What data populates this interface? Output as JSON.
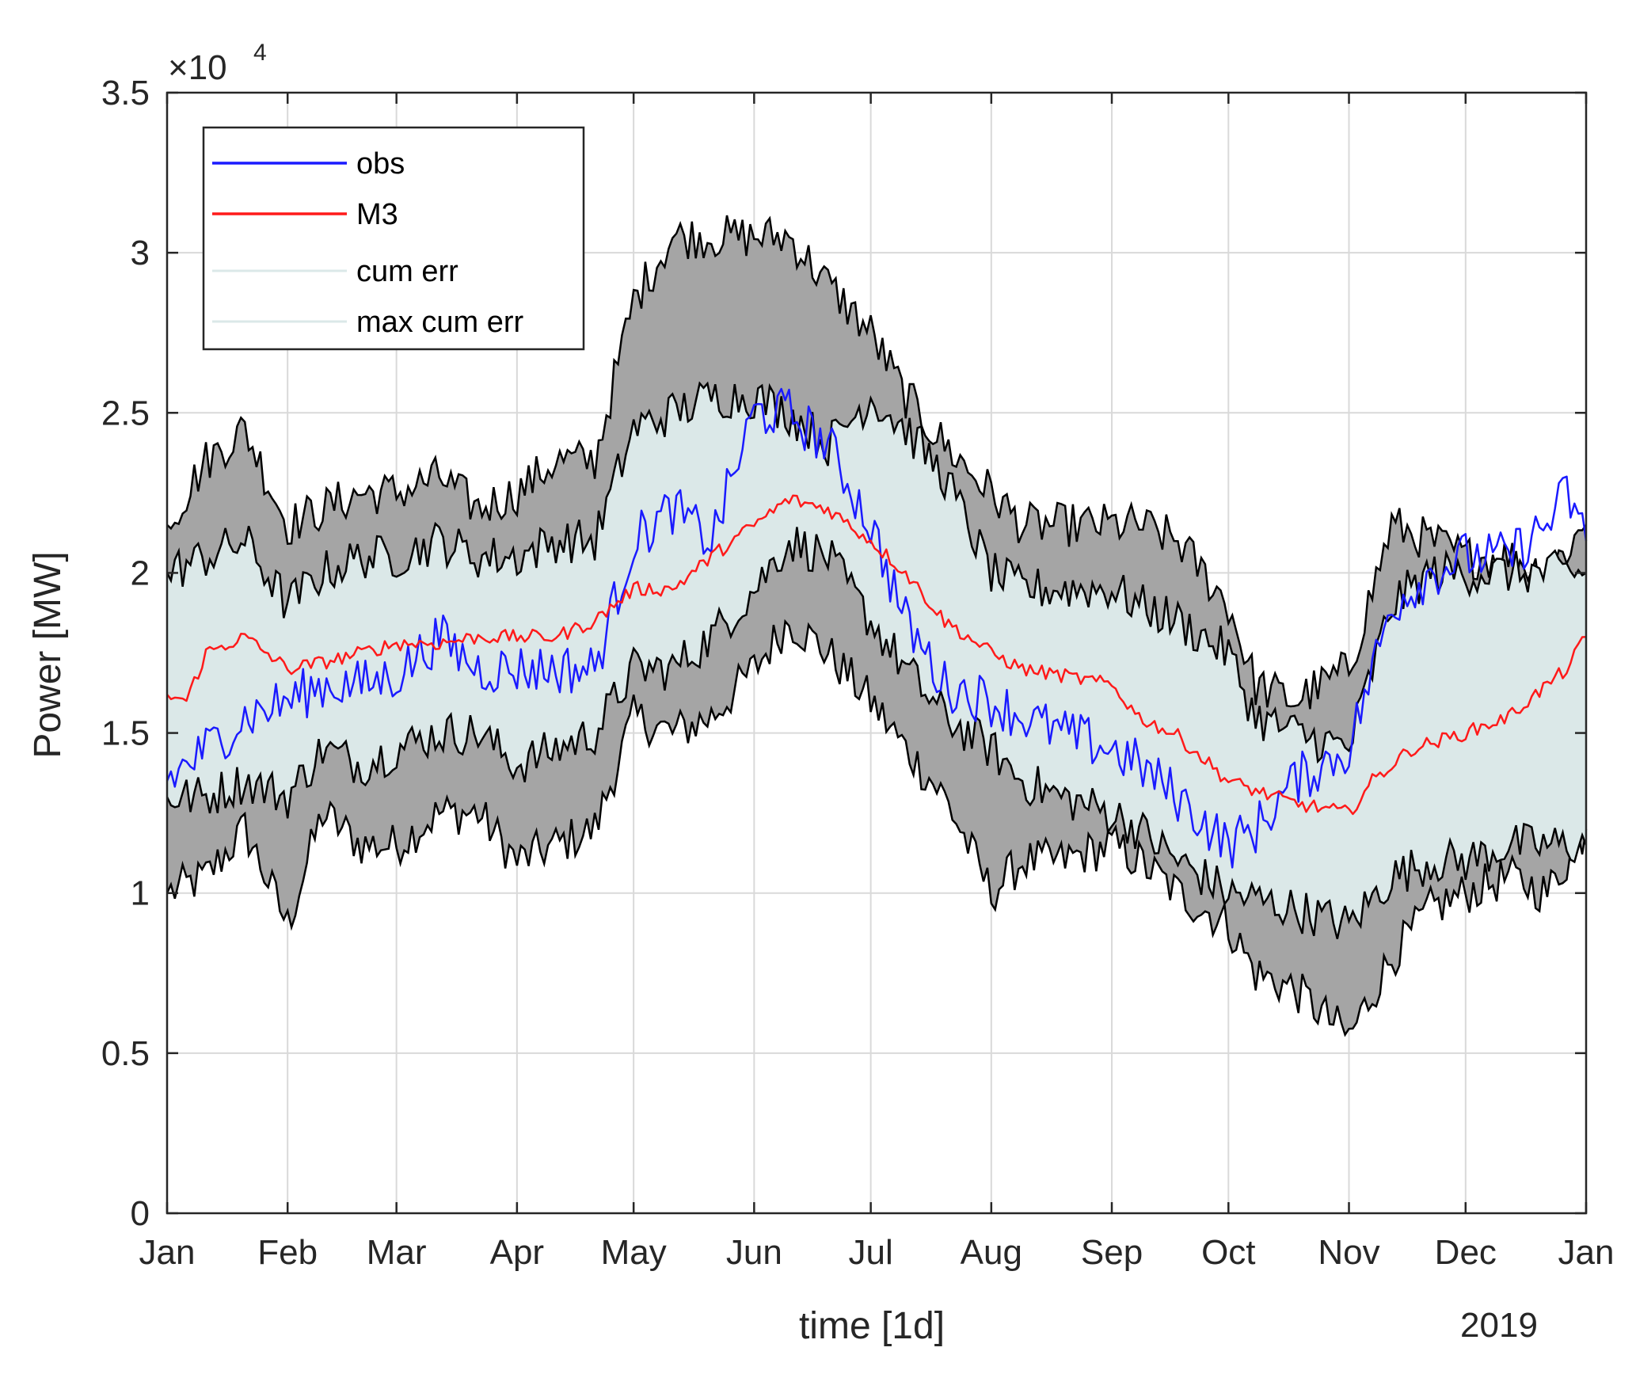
{
  "chart_data": {
    "type": "line",
    "title": "",
    "xlabel": "time [1d]",
    "ylabel": "Power [MW]",
    "y_exponent_label": "×10",
    "y_exponent_power": "4",
    "year_label": "2019",
    "x_domain_days": [
      0,
      365
    ],
    "ylim": [
      0,
      35000
    ],
    "y_ticks": [
      0,
      5000,
      10000,
      15000,
      20000,
      25000,
      30000,
      35000
    ],
    "y_tick_labels": [
      "0",
      "0.5",
      "1",
      "1.5",
      "2",
      "2.5",
      "3",
      "3.5"
    ],
    "x_ticks_day": [
      0,
      31,
      59,
      90,
      120,
      151,
      181,
      212,
      243,
      273,
      304,
      334,
      365
    ],
    "x_tick_labels": [
      "Jan",
      "Feb",
      "Mar",
      "Apr",
      "May",
      "Jun",
      "Jul",
      "Aug",
      "Sep",
      "Oct",
      "Nov",
      "Dec",
      "Jan"
    ],
    "grid": true,
    "legend_position": "top-left",
    "legend": [
      "obs",
      "M3",
      "cum err",
      "max cum err"
    ],
    "colors": {
      "obs": "#1a1aff",
      "M3": "#ff1a1a",
      "cum_err_fill": "#dbe8e8",
      "max_cum_err_fill": "#a5a5a5",
      "band_edge": "#000000",
      "grid": "#d9d9d9",
      "axis": "#262626"
    },
    "series": [
      {
        "name": "obs",
        "x": [
          0,
          10,
          20,
          31,
          40,
          50,
          59,
          70,
          80,
          90,
          100,
          110,
          120,
          130,
          140,
          151,
          160,
          170,
          181,
          190,
          200,
          212,
          220,
          230,
          243,
          250,
          260,
          273,
          280,
          290,
          304,
          315,
          325,
          334,
          345,
          355,
          360,
          365
        ],
        "values": [
          13500,
          14500,
          15500,
          16000,
          16500,
          16500,
          16800,
          18000,
          17000,
          17000,
          17000,
          17000,
          21000,
          22000,
          21000,
          25000,
          25000,
          24000,
          21500,
          18500,
          16500,
          16000,
          15500,
          15000,
          14500,
          14000,
          13000,
          11500,
          12000,
          13500,
          14500,
          19000,
          20000,
          20500,
          20500,
          21500,
          22500,
          21000
        ]
      },
      {
        "name": "M3",
        "x": [
          0,
          5,
          10,
          20,
          31,
          40,
          50,
          59,
          70,
          80,
          90,
          100,
          110,
          120,
          130,
          140,
          151,
          160,
          170,
          181,
          190,
          200,
          212,
          220,
          230,
          243,
          250,
          260,
          273,
          280,
          290,
          304,
          310,
          320,
          334,
          345,
          355,
          360,
          365
        ],
        "values": [
          16200,
          16000,
          17500,
          18000,
          17000,
          17200,
          17500,
          17800,
          17800,
          18000,
          18000,
          18000,
          18500,
          19500,
          19500,
          20500,
          21500,
          22300,
          22000,
          21000,
          20000,
          18500,
          17500,
          17000,
          16800,
          16500,
          15500,
          14900,
          13500,
          13200,
          12800,
          12500,
          13500,
          14500,
          15000,
          15500,
          16500,
          17000,
          18000
        ]
      }
    ],
    "bands": [
      {
        "name": "cum err",
        "x": [
          0,
          10,
          20,
          31,
          40,
          50,
          59,
          70,
          80,
          90,
          100,
          110,
          120,
          130,
          140,
          151,
          160,
          170,
          181,
          190,
          200,
          212,
          220,
          230,
          243,
          250,
          260,
          273,
          280,
          290,
          304,
          315,
          325,
          334,
          345,
          355,
          365
        ],
        "lower": [
          13000,
          13000,
          13500,
          13000,
          14500,
          14000,
          14500,
          15000,
          15000,
          14000,
          14500,
          15000,
          17000,
          17000,
          18000,
          19500,
          21000,
          20500,
          18500,
          17000,
          15500,
          14500,
          13500,
          13000,
          12500,
          12000,
          11000,
          10000,
          9800,
          9500,
          9000,
          10500,
          11000,
          11000,
          11500,
          11500,
          11500
        ],
        "upper": [
          20000,
          20500,
          21000,
          19000,
          20000,
          20500,
          20500,
          21000,
          20500,
          20500,
          21000,
          21000,
          24500,
          25000,
          25500,
          25500,
          25000,
          24000,
          25500,
          24500,
          23000,
          20000,
          19500,
          19500,
          19500,
          19000,
          18500,
          17500,
          15500,
          15000,
          14500,
          19000,
          20000,
          20000,
          20000,
          20000,
          20000
        ]
      },
      {
        "name": "max cum err",
        "x": [
          0,
          10,
          20,
          31,
          40,
          50,
          59,
          70,
          80,
          90,
          100,
          110,
          120,
          130,
          140,
          151,
          160,
          170,
          181,
          190,
          200,
          212,
          220,
          230,
          243,
          250,
          260,
          273,
          280,
          290,
          304,
          315,
          325,
          334,
          345,
          355,
          365
        ],
        "lower": [
          10000,
          10500,
          12000,
          9000,
          12500,
          11500,
          11500,
          12500,
          12500,
          11000,
          11500,
          12000,
          15500,
          15000,
          15500,
          17000,
          18500,
          17500,
          16000,
          14500,
          13000,
          10000,
          11000,
          11000,
          11500,
          11000,
          10000,
          9000,
          7500,
          7000,
          5500,
          8000,
          9500,
          10000,
          10500,
          10000,
          12000
        ],
        "upper": [
          21500,
          23500,
          24500,
          21500,
          22000,
          22500,
          22500,
          23000,
          22000,
          22500,
          23500,
          23500,
          28500,
          30500,
          30500,
          30500,
          30500,
          29000,
          27500,
          25500,
          24000,
          22500,
          21500,
          21500,
          21500,
          21500,
          21000,
          19000,
          16500,
          16000,
          17000,
          21500,
          21000,
          20500,
          20500,
          20000,
          21500
        ]
      }
    ]
  }
}
